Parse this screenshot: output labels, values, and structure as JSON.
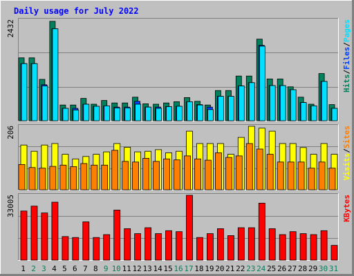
{
  "chart_data": {
    "type": "bar",
    "title": "Daily usage for July 2022",
    "colors": {
      "background": "#c0c0c0",
      "title": "#0000ff",
      "hits": "#00805c",
      "files": "#0040ff",
      "pages": "#00e0ff",
      "visits": "#ffff00",
      "sites": "#ff8000",
      "kbytes": "#ff0000",
      "weekend_label": "#00805c",
      "weekday_label": "#000000"
    },
    "categories": [
      "1",
      "2",
      "3",
      "4",
      "5",
      "6",
      "7",
      "8",
      "9",
      "10",
      "11",
      "12",
      "13",
      "14",
      "15",
      "16",
      "17",
      "18",
      "19",
      "20",
      "21",
      "22",
      "23",
      "24",
      "25",
      "26",
      "27",
      "28",
      "29",
      "30",
      "31"
    ],
    "weekend_days": [
      "2",
      "3",
      "9",
      "10",
      "16",
      "17",
      "23",
      "24",
      "30",
      "31"
    ],
    "panels": [
      {
        "id": "hits-panel",
        "max_label": "2432",
        "ymax": 2432,
        "legend": [
          {
            "text": "Hits",
            "color": "#00805c"
          },
          {
            "text": "/",
            "color": "#000000"
          },
          {
            "text": "Files",
            "color": "#0040ff"
          },
          {
            "text": "/",
            "color": "#000000"
          },
          {
            "text": "Pages",
            "color": "#00e0ff"
          }
        ],
        "series": [
          {
            "name": "Hits",
            "color": "#00805c",
            "values": [
              1520,
              1520,
              1000,
              2400,
              380,
              380,
              540,
              400,
              490,
              430,
              430,
              570,
              410,
              400,
              430,
              460,
              560,
              470,
              380,
              730,
              730,
              1080,
              1080,
              1970,
              1010,
              1010,
              820,
              570,
              400,
              1140,
              390
            ]
          },
          {
            "name": "Files",
            "color": "#0040ff",
            "values": [
              1380,
              1380,
              870,
              2220,
              300,
              300,
              400,
              350,
              360,
              330,
              330,
              470,
              330,
              330,
              340,
              350,
              460,
              390,
              330,
              590,
              590,
              840,
              920,
              1820,
              850,
              850,
              750,
              440,
              360,
              950,
              300
            ]
          },
          {
            "name": "Pages",
            "color": "#00e0ff",
            "values": [
              1380,
              1380,
              840,
              2220,
              300,
              260,
              400,
              350,
              360,
              310,
              310,
              400,
              330,
              300,
              340,
              350,
              460,
              380,
              270,
              590,
              590,
              840,
              920,
              1800,
              850,
              850,
              750,
              440,
              360,
              950,
              300
            ]
          }
        ]
      },
      {
        "id": "visits-panel",
        "max_label": "206",
        "ymax": 206,
        "legend": [
          {
            "text": "Visits",
            "color": "#ffff00"
          },
          {
            "text": "/",
            "color": "#000000"
          },
          {
            "text": "Sites",
            "color": "#ff8000"
          }
        ],
        "series": [
          {
            "name": "Visits",
            "color": "#ffff00",
            "values": [
              145,
              125,
              145,
              150,
              115,
              100,
              108,
              115,
              123,
              150,
              138,
              123,
              125,
              130,
              120,
              125,
              190,
              150,
              150,
              150,
              115,
              170,
              206,
              200,
              190,
              150,
              150,
              137,
              115,
              150,
              115
            ]
          },
          {
            "name": "Sites",
            "color": "#ff8000",
            "values": [
              82,
              72,
              70,
              76,
              80,
              75,
              85,
              80,
              80,
              128,
              92,
              90,
              102,
              92,
              100,
              97,
              110,
              100,
              96,
              120,
              105,
              110,
              150,
              132,
              115,
              90,
              90,
              90,
              70,
              90,
              70
            ]
          }
        ]
      },
      {
        "id": "kbytes-panel",
        "max_label": "33005",
        "ymax": 33005,
        "legend": [
          {
            "text": "KBytes",
            "color": "#ff0000"
          }
        ],
        "series": [
          {
            "name": "KBytes",
            "color": "#ff0000",
            "values": [
              25000,
              27500,
              24000,
              29500,
              12000,
              11500,
              19500,
              11500,
              13000,
              25500,
              16000,
              13500,
              16500,
              13500,
              15000,
              14500,
              33005,
              11500,
              13500,
              16000,
              12500,
              16500,
              16500,
              29000,
              16000,
              13000,
              14500,
              13500,
              13000,
              15000,
              7500
            ]
          }
        ]
      }
    ]
  }
}
